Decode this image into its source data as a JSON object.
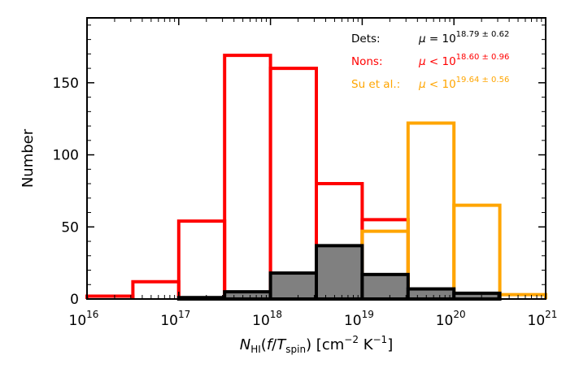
{
  "chart_data": {
    "type": "bar",
    "xscale": "log",
    "x_bin_edges": [
      16.0,
      16.5,
      17.0,
      17.5,
      18.0,
      18.5,
      19.0,
      19.5,
      20.0,
      20.5,
      21.0
    ],
    "xlim": [
      1e+16,
      1e+21
    ],
    "ylim": [
      0,
      195
    ],
    "xlabel": "N_HI(f/T_spin) [cm^-2 K^-1]",
    "ylabel": "Number",
    "yticks": [
      0,
      50,
      100,
      150
    ],
    "xtick_exponents": [
      16,
      17,
      18,
      19,
      20,
      21
    ],
    "grid": false,
    "series": [
      {
        "name": "Nons",
        "style": "step",
        "color": "#ff0000",
        "values": [
          2,
          12,
          54,
          169,
          160,
          80,
          55,
          0,
          0,
          0
        ]
      },
      {
        "name": "Su et al.",
        "style": "step",
        "color": "#ffa500",
        "values": [
          0,
          0,
          0,
          0,
          0,
          0,
          47,
          122,
          65,
          3
        ]
      },
      {
        "name": "Dets",
        "style": "filled",
        "color": "#000000",
        "fill": "#808080",
        "values": [
          0,
          0,
          1,
          5,
          18,
          37,
          17,
          7,
          4,
          0
        ]
      }
    ],
    "legend": {
      "placement": "top-right",
      "entries": [
        {
          "label": "Dets:",
          "formula": "μ = 10",
          "exponent": "18.79 ± 0.62",
          "color": "#000000"
        },
        {
          "label": "Nons:",
          "formula": "μ < 10",
          "exponent": "18.60 ± 0.96",
          "color": "#ff0000"
        },
        {
          "label": "Su et al.:",
          "formula": "μ < 10",
          "exponent": "19.64 ± 0.56",
          "color": "#ffa500"
        }
      ]
    }
  }
}
